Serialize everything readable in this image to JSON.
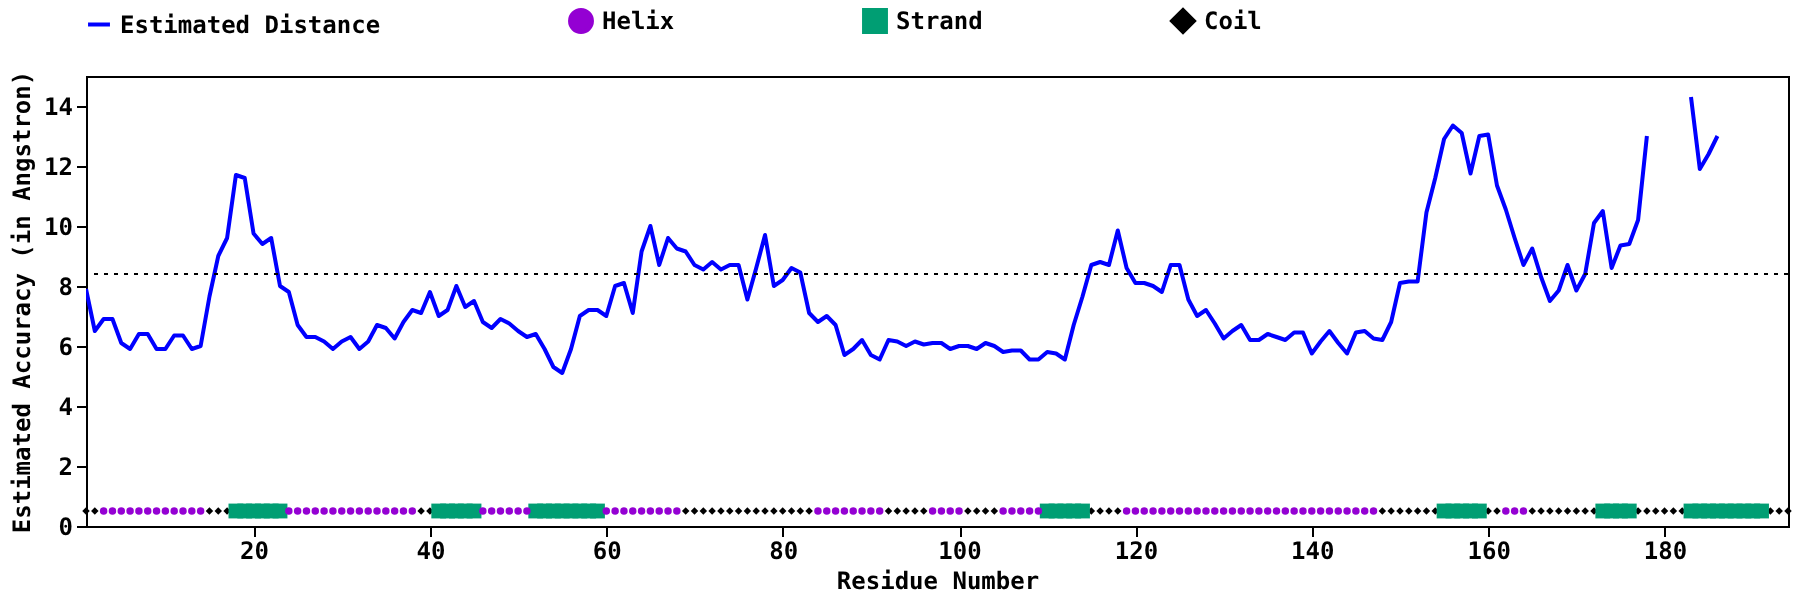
{
  "chart_data": {
    "type": "line",
    "xlabel": "Residue Number",
    "ylabel": "Estimated Accuracy (in Angstron)",
    "xlim": [
      1,
      194
    ],
    "ylim": [
      0,
      15
    ],
    "xticks": [
      20,
      40,
      60,
      80,
      100,
      120,
      140,
      160,
      180
    ],
    "yticks": [
      0,
      2,
      4,
      6,
      8,
      10,
      12,
      14
    ],
    "grid": false,
    "legend": "top",
    "ref_lines": [
      {
        "axis": "y",
        "value": 8.4,
        "color": "#000000",
        "line_style": "dotted"
      }
    ],
    "series": [
      {
        "name": "Estimated Distance",
        "color": "#0000ff",
        "marker": "none",
        "line_style": "solid",
        "x": [
          1,
          2,
          3,
          4,
          5,
          6,
          7,
          8,
          9,
          10,
          11,
          12,
          13,
          14,
          15,
          16,
          17,
          18,
          19,
          20,
          21,
          22,
          23,
          24,
          25,
          26,
          27,
          28,
          29,
          30,
          31,
          32,
          33,
          34,
          35,
          36,
          37,
          38,
          39,
          40,
          41,
          42,
          43,
          44,
          45,
          46,
          47,
          48,
          49,
          50,
          51,
          52,
          53,
          54,
          55,
          56,
          57,
          58,
          59,
          60,
          61,
          62,
          63,
          64,
          65,
          66,
          67,
          68,
          69,
          70,
          71,
          72,
          73,
          74,
          75,
          76,
          77,
          78,
          79,
          80,
          81,
          82,
          83,
          84,
          85,
          86,
          87,
          88,
          89,
          90,
          91,
          92,
          93,
          94,
          95,
          96,
          97,
          98,
          99,
          100,
          101,
          102,
          103,
          104,
          105,
          106,
          107,
          108,
          109,
          110,
          111,
          112,
          113,
          114,
          115,
          116,
          117,
          118,
          119,
          120,
          121,
          122,
          123,
          124,
          125,
          126,
          127,
          128,
          129,
          130,
          131,
          132,
          133,
          134,
          135,
          136,
          137,
          138,
          139,
          140,
          141,
          142,
          143,
          144,
          145,
          146,
          147,
          148,
          149,
          150,
          151,
          152,
          153,
          154,
          155,
          156,
          157,
          158,
          159,
          160,
          161,
          162,
          163,
          164,
          165,
          166,
          167,
          168,
          169,
          170,
          171,
          172,
          173,
          174,
          175,
          176,
          177,
          178,
          179,
          180,
          181,
          182,
          183,
          184,
          185,
          186
        ],
        "values": [
          7.9,
          6.5,
          6.9,
          6.9,
          6.1,
          5.9,
          6.4,
          6.4,
          5.9,
          5.9,
          6.35,
          6.35,
          5.9,
          6.0,
          7.65,
          9.0,
          9.6,
          11.7,
          11.6,
          9.75,
          9.4,
          9.6,
          8.0,
          7.8,
          6.7,
          6.3,
          6.3,
          6.15,
          5.9,
          6.15,
          6.3,
          5.9,
          6.15,
          6.7,
          6.6,
          6.25,
          6.8,
          7.2,
          7.1,
          7.8,
          7.0,
          7.2,
          8.0,
          7.3,
          7.5,
          6.8,
          6.6,
          6.9,
          6.75,
          6.5,
          6.3,
          6.4,
          5.9,
          5.3,
          5.1,
          5.9,
          7.0,
          7.2,
          7.2,
          7.0,
          8.0,
          8.1,
          7.1,
          9.15,
          10.0,
          8.7,
          9.6,
          9.25,
          9.15,
          8.7,
          8.55,
          8.8,
          8.55,
          8.7,
          8.7,
          7.55,
          8.6,
          9.7,
          8.0,
          8.2,
          8.6,
          8.45,
          7.1,
          6.8,
          7.0,
          6.7,
          5.7,
          5.9,
          6.2,
          5.7,
          5.55,
          6.2,
          6.15,
          6.0,
          6.15,
          6.05,
          6.1,
          6.1,
          5.9,
          6.0,
          6.0,
          5.9,
          6.1,
          6.0,
          5.8,
          5.85,
          5.85,
          5.55,
          5.55,
          5.8,
          5.75,
          5.55,
          6.7,
          7.65,
          8.7,
          8.8,
          8.7,
          9.85,
          8.6,
          8.1,
          8.1,
          8.0,
          7.8,
          8.7,
          8.7,
          7.55,
          7.0,
          7.2,
          6.75,
          6.25,
          6.5,
          6.7,
          6.2,
          6.2,
          6.4,
          6.3,
          6.2,
          6.45,
          6.45,
          5.75,
          6.15,
          6.5,
          6.1,
          5.75,
          6.45,
          6.5,
          6.25,
          6.2,
          6.8,
          8.1,
          8.15,
          8.15,
          10.45,
          11.6,
          12.9,
          13.35,
          13.1,
          11.75,
          13.0,
          13.05,
          11.35,
          10.55,
          9.6,
          8.7,
          9.25,
          8.3,
          7.5,
          7.85,
          8.7,
          7.85,
          8.4,
          10.1,
          10.5,
          8.6,
          9.35,
          9.4,
          10.2,
          13.0,
          null,
          null,
          null,
          null,
          14.3,
          11.9,
          12.4,
          13.0
        ]
      },
      {
        "name": "Helix",
        "type": "scatter",
        "color": "#9400d3",
        "marker": "circle",
        "x": [
          3,
          4,
          5,
          6,
          7,
          8,
          9,
          10,
          11,
          12,
          13,
          14,
          24,
          25,
          26,
          27,
          28,
          29,
          30,
          31,
          32,
          33,
          34,
          35,
          36,
          37,
          38,
          46,
          47,
          48,
          49,
          50,
          51,
          60,
          61,
          62,
          63,
          64,
          65,
          66,
          67,
          68,
          84,
          85,
          86,
          87,
          88,
          89,
          90,
          91,
          97,
          98,
          99,
          100,
          105,
          106,
          107,
          108,
          109,
          119,
          120,
          121,
          122,
          123,
          124,
          125,
          126,
          127,
          128,
          129,
          130,
          131,
          132,
          133,
          134,
          135,
          136,
          137,
          138,
          139,
          140,
          141,
          142,
          143,
          144,
          145,
          146,
          147,
          162,
          163,
          164
        ],
        "values": [
          0.5,
          0.5,
          0.5,
          0.5,
          0.5,
          0.5,
          0.5,
          0.5,
          0.5,
          0.5,
          0.5,
          0.5,
          0.5,
          0.5,
          0.5,
          0.5,
          0.5,
          0.5,
          0.5,
          0.5,
          0.5,
          0.5,
          0.5,
          0.5,
          0.5,
          0.5,
          0.5,
          0.5,
          0.5,
          0.5,
          0.5,
          0.5,
          0.5,
          0.5,
          0.5,
          0.5,
          0.5,
          0.5,
          0.5,
          0.5,
          0.5,
          0.5,
          0.5,
          0.5,
          0.5,
          0.5,
          0.5,
          0.5,
          0.5,
          0.5,
          0.5,
          0.5,
          0.5,
          0.5,
          0.5,
          0.5,
          0.5,
          0.5,
          0.5,
          0.5,
          0.5,
          0.5,
          0.5,
          0.5,
          0.5,
          0.5,
          0.5,
          0.5,
          0.5,
          0.5,
          0.5,
          0.5,
          0.5,
          0.5,
          0.5,
          0.5,
          0.5,
          0.5,
          0.5,
          0.5,
          0.5,
          0.5,
          0.5,
          0.5,
          0.5,
          0.5,
          0.5,
          0.5,
          0.5,
          0.5,
          0.5
        ]
      },
      {
        "name": "Strand",
        "type": "scatter",
        "color": "#009e73",
        "marker": "square",
        "x": [
          18,
          19,
          20,
          21,
          22,
          23,
          41,
          42,
          43,
          44,
          45,
          52,
          53,
          54,
          55,
          56,
          57,
          58,
          59,
          110,
          111,
          112,
          113,
          114,
          155,
          156,
          157,
          158,
          159,
          173,
          174,
          175,
          176,
          183,
          184,
          185,
          186,
          187,
          188,
          189,
          190,
          191
        ],
        "values": [
          0.5,
          0.5,
          0.5,
          0.5,
          0.5,
          0.5,
          0.5,
          0.5,
          0.5,
          0.5,
          0.5,
          0.5,
          0.5,
          0.5,
          0.5,
          0.5,
          0.5,
          0.5,
          0.5,
          0.5,
          0.5,
          0.5,
          0.5,
          0.5,
          0.5,
          0.5,
          0.5,
          0.5,
          0.5,
          0.5,
          0.5,
          0.5,
          0.5,
          0.5,
          0.5,
          0.5,
          0.5,
          0.5,
          0.5,
          0.5,
          0.5,
          0.5
        ]
      },
      {
        "name": "Coil",
        "type": "scatter",
        "color": "#000000",
        "marker": "diamond",
        "x": [
          1,
          2,
          15,
          16,
          17,
          39,
          40,
          69,
          70,
          71,
          72,
          73,
          74,
          75,
          76,
          77,
          78,
          79,
          80,
          81,
          82,
          83,
          92,
          93,
          94,
          95,
          96,
          101,
          102,
          103,
          104,
          115,
          116,
          117,
          118,
          148,
          149,
          150,
          151,
          152,
          153,
          154,
          160,
          161,
          165,
          166,
          167,
          168,
          169,
          170,
          171,
          172,
          177,
          178,
          179,
          180,
          181,
          182,
          192,
          193,
          194
        ],
        "values": [
          0.5,
          0.5,
          0.5,
          0.5,
          0.5,
          0.5,
          0.5,
          0.5,
          0.5,
          0.5,
          0.5,
          0.5,
          0.5,
          0.5,
          0.5,
          0.5,
          0.5,
          0.5,
          0.5,
          0.5,
          0.5,
          0.5,
          0.5,
          0.5,
          0.5,
          0.5,
          0.5,
          0.5,
          0.5,
          0.5,
          0.5,
          0.5,
          0.5,
          0.5,
          0.5,
          0.5,
          0.5,
          0.5,
          0.5,
          0.5,
          0.5,
          0.5,
          0.5,
          0.5,
          0.5,
          0.5,
          0.5,
          0.5,
          0.5,
          0.5,
          0.5,
          0.5,
          0.5,
          0.5,
          0.5,
          0.5,
          0.5,
          0.5,
          0.5,
          0.5,
          0.5
        ]
      }
    ]
  }
}
